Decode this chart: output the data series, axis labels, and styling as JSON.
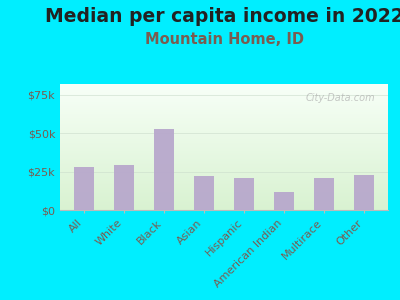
{
  "title": "Median per capita income in 2022",
  "subtitle": "Mountain Home, ID",
  "categories": [
    "All",
    "White",
    "Black",
    "Asian",
    "Hispanic",
    "American Indian",
    "Multirace",
    "Other"
  ],
  "values": [
    28000,
    29000,
    53000,
    22000,
    21000,
    12000,
    21000,
    23000
  ],
  "bar_color": "#b8a8cc",
  "background_color": "#00eeff",
  "title_color": "#222222",
  "subtitle_color": "#7a5c50",
  "tick_color": "#7a5c50",
  "yticks": [
    0,
    25000,
    50000,
    75000
  ],
  "ytick_labels": [
    "$0",
    "$25k",
    "$50k",
    "$75k"
  ],
  "ylim": [
    0,
    82000
  ],
  "watermark": "City-Data.com",
  "title_fontsize": 13.5,
  "subtitle_fontsize": 10.5,
  "tick_fontsize": 8
}
